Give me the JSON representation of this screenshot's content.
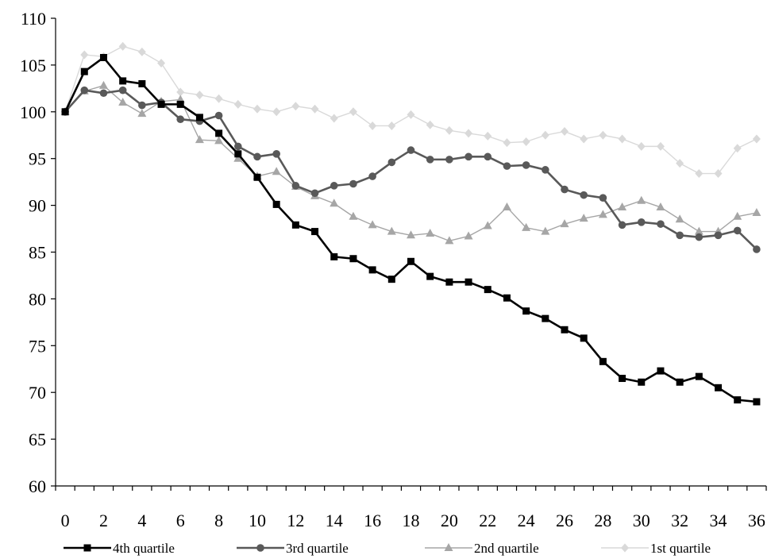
{
  "chart_data": {
    "type": "line",
    "title": "",
    "xlabel": "",
    "ylabel": "",
    "ylim": [
      60,
      110
    ],
    "y_ticks": [
      60,
      65,
      70,
      75,
      80,
      85,
      90,
      95,
      100,
      105,
      110
    ],
    "xlim": [
      -0.5,
      36.5
    ],
    "x_ticks": [
      0,
      2,
      4,
      6,
      8,
      10,
      12,
      14,
      16,
      18,
      20,
      22,
      24,
      26,
      28,
      30,
      32,
      34,
      36
    ],
    "x": [
      0,
      1,
      2,
      3,
      4,
      5,
      6,
      7,
      8,
      9,
      10,
      11,
      12,
      13,
      14,
      15,
      16,
      17,
      18,
      19,
      20,
      21,
      22,
      23,
      24,
      25,
      26,
      27,
      28,
      29,
      30,
      31,
      32,
      33,
      34,
      35,
      36
    ],
    "grid": false,
    "legend_position": "bottom",
    "series": [
      {
        "name": "4th quartile",
        "color": "#000000",
        "marker": "square",
        "values": [
          100.0,
          104.3,
          105.8,
          103.3,
          103.0,
          100.8,
          100.8,
          99.4,
          97.7,
          95.5,
          93.0,
          90.1,
          87.9,
          87.2,
          84.5,
          84.3,
          83.1,
          82.1,
          84.0,
          82.4,
          81.8,
          81.8,
          81.0,
          80.1,
          78.7,
          77.9,
          76.7,
          75.8,
          73.3,
          71.5,
          71.1,
          72.3,
          71.1,
          71.7,
          70.5,
          69.2,
          69.0
        ]
      },
      {
        "name": "3rd quartile",
        "color": "#595959",
        "marker": "circle",
        "values": [
          100.0,
          102.3,
          102.0,
          102.3,
          100.7,
          101.0,
          99.2,
          99.0,
          99.6,
          96.3,
          95.2,
          95.5,
          92.1,
          91.3,
          92.1,
          92.3,
          93.1,
          94.6,
          95.9,
          94.9,
          94.9,
          95.2,
          95.2,
          94.2,
          94.3,
          93.8,
          91.7,
          91.1,
          90.8,
          87.9,
          88.2,
          88.0,
          86.8,
          86.6,
          86.8,
          87.3,
          85.3
        ]
      },
      {
        "name": "2nd quartile",
        "color": "#a6a6a6",
        "marker": "triangle",
        "values": [
          100.0,
          102.2,
          102.8,
          101.0,
          99.8,
          101.1,
          101.3,
          97.0,
          96.9,
          95.0,
          93.1,
          93.6,
          92.0,
          91.0,
          90.2,
          88.8,
          87.9,
          87.2,
          86.8,
          87.0,
          86.2,
          86.7,
          87.8,
          89.8,
          87.6,
          87.2,
          88.0,
          88.6,
          89.0,
          89.8,
          90.5,
          89.8,
          88.5,
          87.2,
          87.2,
          88.8,
          89.2
        ]
      },
      {
        "name": "1st quartile",
        "color": "#d9d9d9",
        "marker": "diamond",
        "values": [
          100.0,
          106.1,
          105.9,
          107.0,
          106.4,
          105.2,
          102.1,
          101.8,
          101.4,
          100.8,
          100.3,
          100.0,
          100.6,
          100.3,
          99.3,
          100.0,
          98.5,
          98.5,
          99.7,
          98.6,
          98.0,
          97.7,
          97.4,
          96.7,
          96.8,
          97.5,
          97.9,
          97.1,
          97.5,
          97.1,
          96.3,
          96.3,
          94.5,
          93.4,
          93.4,
          96.1,
          97.1
        ]
      }
    ]
  }
}
